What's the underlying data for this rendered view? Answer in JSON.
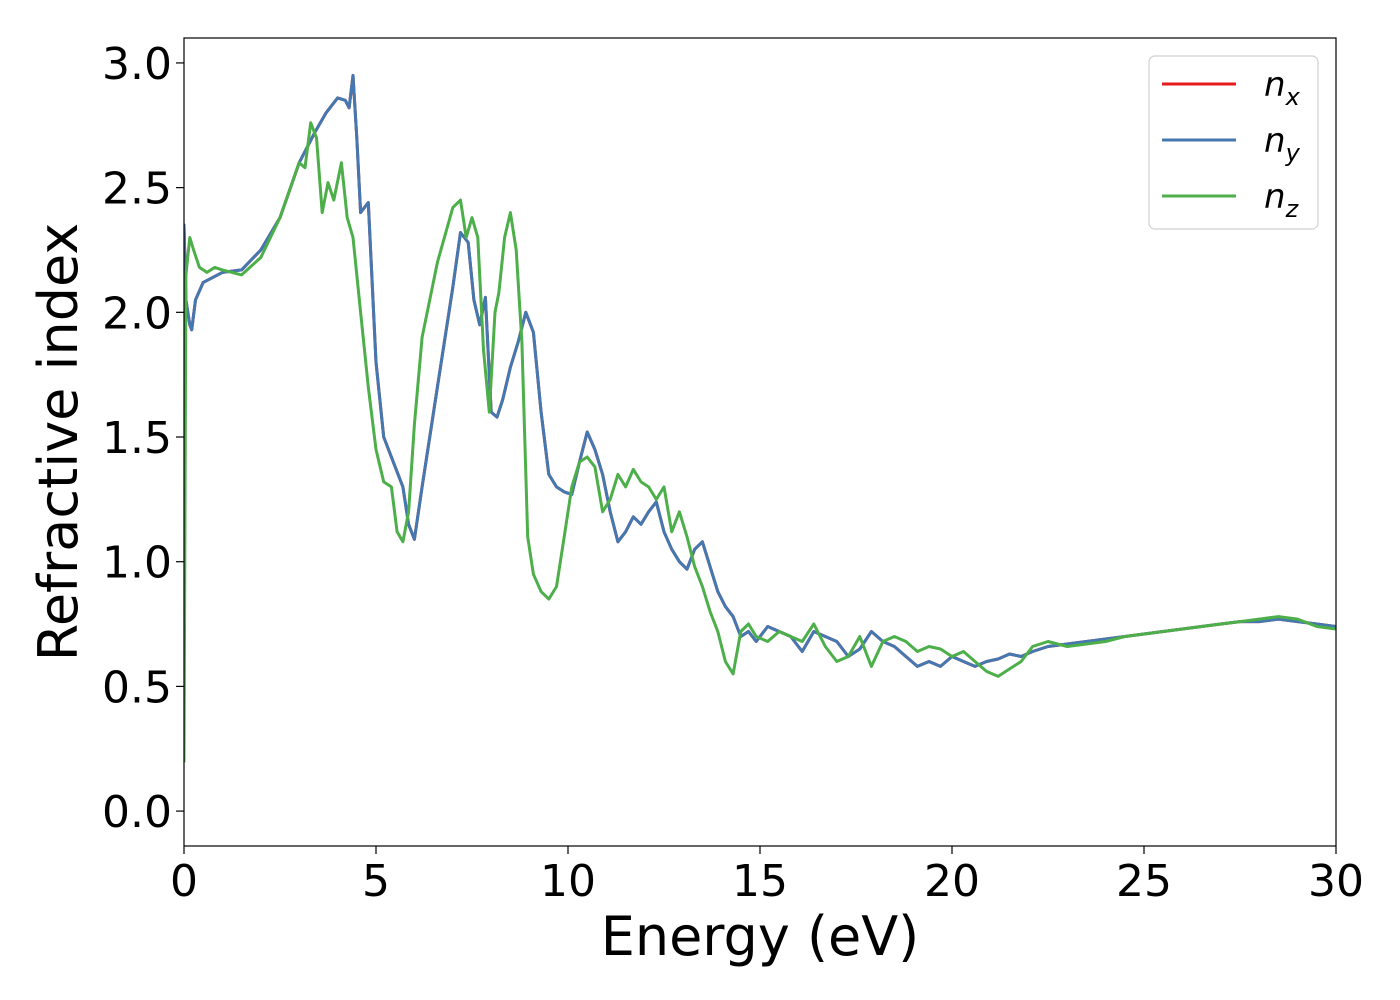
{
  "chart_data": {
    "type": "line",
    "xlabel": "Energy (eV)",
    "ylabel": "Refractive index",
    "xlim": [
      0,
      30
    ],
    "ylim": [
      -0.14,
      3.1
    ],
    "xticks": [
      "0",
      "5",
      "10",
      "15",
      "20",
      "25",
      "30"
    ],
    "xtick_values": [
      0,
      5,
      10,
      15,
      20,
      25,
      30
    ],
    "yticks": [
      "0.0",
      "0.5",
      "1.0",
      "1.5",
      "2.0",
      "2.5",
      "3.0"
    ],
    "ytick_values": [
      0,
      0.5,
      1.0,
      1.5,
      2.0,
      2.5,
      3.0
    ],
    "grid": false,
    "legend_position": "top-right",
    "series": [
      {
        "name": "n_x",
        "legend_base": "n",
        "legend_sub": "x",
        "color": "#e41a1c",
        "x": [
          0,
          0.05,
          0.15,
          0.2,
          0.3,
          0.5,
          1.0,
          1.5,
          2.0,
          2.5,
          3.0,
          3.4,
          3.7,
          4.0,
          4.2,
          4.3,
          4.4,
          4.5,
          4.6,
          4.8,
          5.0,
          5.2,
          5.5,
          5.7,
          5.85,
          6.0,
          6.2,
          6.6,
          7.0,
          7.2,
          7.4,
          7.55,
          7.7,
          7.85,
          8.0,
          8.15,
          8.3,
          8.5,
          8.7,
          8.9,
          9.1,
          9.3,
          9.5,
          9.7,
          9.9,
          10.1,
          10.3,
          10.5,
          10.7,
          10.9,
          11.1,
          11.3,
          11.5,
          11.7,
          11.9,
          12.1,
          12.3,
          12.5,
          12.7,
          12.9,
          13.1,
          13.3,
          13.5,
          13.7,
          13.9,
          14.1,
          14.3,
          14.5,
          14.7,
          14.9,
          15.2,
          15.5,
          15.8,
          16.1,
          16.4,
          16.7,
          17.0,
          17.3,
          17.6,
          17.9,
          18.2,
          18.5,
          18.8,
          19.1,
          19.4,
          19.7,
          20.0,
          20.3,
          20.6,
          20.9,
          21.2,
          21.5,
          21.8,
          22.1,
          22.5,
          23.0,
          23.5,
          24.0,
          24.5,
          25.0,
          25.5,
          26.0,
          26.5,
          27.0,
          27.5,
          28.0,
          28.5,
          29.0,
          29.5,
          30.0
        ],
        "y": [
          2.35,
          2.05,
          1.95,
          1.93,
          2.05,
          2.12,
          2.16,
          2.17,
          2.25,
          2.38,
          2.6,
          2.72,
          2.8,
          2.86,
          2.85,
          2.82,
          2.95,
          2.7,
          2.4,
          2.44,
          1.8,
          1.5,
          1.38,
          1.3,
          1.15,
          1.09,
          1.3,
          1.7,
          2.1,
          2.32,
          2.28,
          2.05,
          1.95,
          2.06,
          1.6,
          1.58,
          1.65,
          1.78,
          1.88,
          2.0,
          1.92,
          1.6,
          1.35,
          1.3,
          1.28,
          1.27,
          1.4,
          1.52,
          1.45,
          1.35,
          1.2,
          1.08,
          1.12,
          1.18,
          1.15,
          1.2,
          1.24,
          1.12,
          1.05,
          1.0,
          0.97,
          1.05,
          1.08,
          0.98,
          0.88,
          0.82,
          0.78,
          0.7,
          0.72,
          0.68,
          0.74,
          0.72,
          0.7,
          0.64,
          0.72,
          0.7,
          0.68,
          0.62,
          0.65,
          0.72,
          0.68,
          0.66,
          0.62,
          0.58,
          0.6,
          0.58,
          0.62,
          0.6,
          0.58,
          0.6,
          0.61,
          0.63,
          0.62,
          0.64,
          0.66,
          0.67,
          0.68,
          0.69,
          0.7,
          0.71,
          0.72,
          0.73,
          0.74,
          0.75,
          0.76,
          0.76,
          0.77,
          0.76,
          0.75,
          0.74
        ]
      },
      {
        "name": "n_y",
        "legend_base": "n",
        "legend_sub": "y",
        "color": "#4478b0",
        "x": [
          0,
          0.05,
          0.15,
          0.2,
          0.3,
          0.5,
          1.0,
          1.5,
          2.0,
          2.5,
          3.0,
          3.4,
          3.7,
          4.0,
          4.2,
          4.3,
          4.4,
          4.5,
          4.6,
          4.8,
          5.0,
          5.2,
          5.5,
          5.7,
          5.85,
          6.0,
          6.2,
          6.6,
          7.0,
          7.2,
          7.4,
          7.55,
          7.7,
          7.85,
          8.0,
          8.15,
          8.3,
          8.5,
          8.7,
          8.9,
          9.1,
          9.3,
          9.5,
          9.7,
          9.9,
          10.1,
          10.3,
          10.5,
          10.7,
          10.9,
          11.1,
          11.3,
          11.5,
          11.7,
          11.9,
          12.1,
          12.3,
          12.5,
          12.7,
          12.9,
          13.1,
          13.3,
          13.5,
          13.7,
          13.9,
          14.1,
          14.3,
          14.5,
          14.7,
          14.9,
          15.2,
          15.5,
          15.8,
          16.1,
          16.4,
          16.7,
          17.0,
          17.3,
          17.6,
          17.9,
          18.2,
          18.5,
          18.8,
          19.1,
          19.4,
          19.7,
          20.0,
          20.3,
          20.6,
          20.9,
          21.2,
          21.5,
          21.8,
          22.1,
          22.5,
          23.0,
          23.5,
          24.0,
          24.5,
          25.0,
          25.5,
          26.0,
          26.5,
          27.0,
          27.5,
          28.0,
          28.5,
          29.0,
          29.5,
          30.0
        ],
        "y": [
          2.35,
          2.05,
          1.95,
          1.93,
          2.05,
          2.12,
          2.16,
          2.17,
          2.25,
          2.38,
          2.6,
          2.72,
          2.8,
          2.86,
          2.85,
          2.82,
          2.95,
          2.7,
          2.4,
          2.44,
          1.8,
          1.5,
          1.38,
          1.3,
          1.15,
          1.09,
          1.3,
          1.7,
          2.1,
          2.32,
          2.28,
          2.05,
          1.95,
          2.06,
          1.6,
          1.58,
          1.65,
          1.78,
          1.88,
          2.0,
          1.92,
          1.6,
          1.35,
          1.3,
          1.28,
          1.27,
          1.4,
          1.52,
          1.45,
          1.35,
          1.2,
          1.08,
          1.12,
          1.18,
          1.15,
          1.2,
          1.24,
          1.12,
          1.05,
          1.0,
          0.97,
          1.05,
          1.08,
          0.98,
          0.88,
          0.82,
          0.78,
          0.7,
          0.72,
          0.68,
          0.74,
          0.72,
          0.7,
          0.64,
          0.72,
          0.7,
          0.68,
          0.62,
          0.65,
          0.72,
          0.68,
          0.66,
          0.62,
          0.58,
          0.6,
          0.58,
          0.62,
          0.6,
          0.58,
          0.6,
          0.61,
          0.63,
          0.62,
          0.64,
          0.66,
          0.67,
          0.68,
          0.69,
          0.7,
          0.71,
          0.72,
          0.73,
          0.74,
          0.75,
          0.76,
          0.76,
          0.77,
          0.76,
          0.75,
          0.74
        ]
      },
      {
        "name": "n_z",
        "legend_base": "n",
        "legend_sub": "z",
        "color": "#4daf4a",
        "x": [
          0,
          0.05,
          0.15,
          0.25,
          0.4,
          0.6,
          0.8,
          1.0,
          1.5,
          2.0,
          2.5,
          3.0,
          3.15,
          3.3,
          3.45,
          3.6,
          3.75,
          3.9,
          4.1,
          4.25,
          4.4,
          4.6,
          4.8,
          5.0,
          5.2,
          5.4,
          5.55,
          5.7,
          5.85,
          6.0,
          6.2,
          6.6,
          7.0,
          7.2,
          7.35,
          7.5,
          7.65,
          7.8,
          7.95,
          8.1,
          8.2,
          8.35,
          8.5,
          8.65,
          8.8,
          8.95,
          9.1,
          9.3,
          9.5,
          9.7,
          9.9,
          10.1,
          10.3,
          10.5,
          10.7,
          10.9,
          11.1,
          11.3,
          11.5,
          11.7,
          11.9,
          12.1,
          12.3,
          12.5,
          12.7,
          12.9,
          13.1,
          13.3,
          13.5,
          13.7,
          13.9,
          14.1,
          14.3,
          14.5,
          14.7,
          14.9,
          15.2,
          15.5,
          15.8,
          16.1,
          16.4,
          16.7,
          17.0,
          17.3,
          17.6,
          17.9,
          18.2,
          18.5,
          18.8,
          19.1,
          19.4,
          19.7,
          20.0,
          20.3,
          20.6,
          20.9,
          21.2,
          21.5,
          21.8,
          22.1,
          22.5,
          23.0,
          23.5,
          24.0,
          24.5,
          25.0,
          25.5,
          26.0,
          26.5,
          27.0,
          27.5,
          28.0,
          28.5,
          29.0,
          29.5,
          30.0
        ],
        "y": [
          0.2,
          2.15,
          2.3,
          2.25,
          2.18,
          2.16,
          2.18,
          2.17,
          2.15,
          2.22,
          2.38,
          2.6,
          2.58,
          2.76,
          2.7,
          2.4,
          2.52,
          2.45,
          2.6,
          2.38,
          2.3,
          2.0,
          1.7,
          1.45,
          1.32,
          1.3,
          1.12,
          1.08,
          1.2,
          1.55,
          1.9,
          2.2,
          2.42,
          2.45,
          2.3,
          2.38,
          2.3,
          1.85,
          1.6,
          2.0,
          2.08,
          2.3,
          2.4,
          2.25,
          1.88,
          1.1,
          0.95,
          0.88,
          0.85,
          0.9,
          1.1,
          1.3,
          1.4,
          1.42,
          1.38,
          1.2,
          1.25,
          1.35,
          1.3,
          1.37,
          1.32,
          1.3,
          1.25,
          1.3,
          1.12,
          1.2,
          1.1,
          0.98,
          0.9,
          0.8,
          0.72,
          0.6,
          0.55,
          0.72,
          0.75,
          0.7,
          0.68,
          0.72,
          0.7,
          0.68,
          0.75,
          0.66,
          0.6,
          0.62,
          0.7,
          0.58,
          0.68,
          0.7,
          0.68,
          0.64,
          0.66,
          0.65,
          0.62,
          0.64,
          0.6,
          0.56,
          0.54,
          0.57,
          0.6,
          0.66,
          0.68,
          0.66,
          0.67,
          0.68,
          0.7,
          0.71,
          0.72,
          0.73,
          0.74,
          0.75,
          0.76,
          0.77,
          0.78,
          0.77,
          0.74,
          0.73
        ]
      }
    ]
  }
}
